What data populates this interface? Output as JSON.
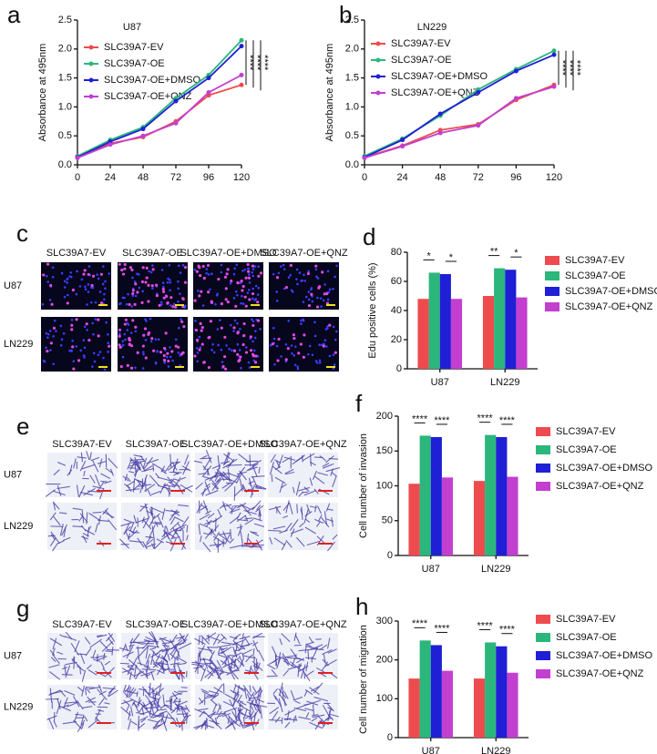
{
  "chart_data": [
    {
      "panel_label": "a",
      "type": "line",
      "title": "U87",
      "y_label": "Absorbance at 495nm",
      "x": [
        0,
        24,
        48,
        72,
        96,
        120
      ],
      "xlim": [
        0,
        120
      ],
      "xticks": [
        0,
        24,
        48,
        72,
        96,
        120
      ],
      "ylim": [
        0,
        2.5
      ],
      "yticks": [
        {
          "value": 0,
          "label": "0.0"
        },
        0.5,
        {
          "value": 1,
          "label": "1.0"
        },
        1.5,
        {
          "value": 2,
          "label": "2.0"
        },
        2.5
      ],
      "series": [
        {
          "name": "SLC39A7-EV",
          "color": "#ee4b4f",
          "values": [
            0.13,
            0.37,
            0.48,
            0.75,
            1.2,
            1.38
          ]
        },
        {
          "name": "SLC39A7-OE",
          "color": "#2bb67c",
          "values": [
            0.15,
            0.43,
            0.65,
            1.15,
            1.55,
            2.15
          ]
        },
        {
          "name": "SLC39A7-OE+DMSO",
          "color": "#1f1fd6",
          "values": [
            0.13,
            0.4,
            0.62,
            1.1,
            1.5,
            2.05
          ]
        },
        {
          "name": "SLC39A7-OE+QNZ",
          "color": "#c23fcf",
          "values": [
            0.12,
            0.35,
            0.5,
            0.72,
            1.25,
            1.55
          ]
        }
      ],
      "significance": [
        "****",
        "****",
        "****"
      ],
      "legend": "upper left"
    },
    {
      "panel_label": "b",
      "type": "line",
      "title": "LN229",
      "y_label": "Absorbance at 495nm",
      "x": [
        0,
        24,
        48,
        72,
        96,
        120
      ],
      "xlim": [
        0,
        120
      ],
      "xticks": [
        0,
        24,
        48,
        72,
        96,
        120
      ],
      "ylim": [
        0,
        2.5
      ],
      "yticks": [
        {
          "value": 0,
          "label": "0.0"
        },
        0.5,
        {
          "value": 1,
          "label": "1.0"
        },
        1.5,
        {
          "value": 2,
          "label": "2.0"
        },
        2.5
      ],
      "series": [
        {
          "name": "SLC39A7-EV",
          "color": "#ee4b4f",
          "values": [
            0.13,
            0.33,
            0.6,
            0.7,
            1.12,
            1.38
          ]
        },
        {
          "name": "SLC39A7-OE",
          "color": "#2bb67c",
          "values": [
            0.15,
            0.45,
            0.85,
            1.3,
            1.65,
            1.97
          ]
        },
        {
          "name": "SLC39A7-OE+DMSO",
          "color": "#1f1fd6",
          "values": [
            0.13,
            0.43,
            0.88,
            1.25,
            1.62,
            1.9
          ]
        },
        {
          "name": "SLC39A7-OE+QNZ",
          "color": "#c23fcf",
          "values": [
            0.12,
            0.32,
            0.55,
            0.68,
            1.15,
            1.35
          ]
        }
      ],
      "significance": [
        "****",
        "****",
        "****"
      ],
      "legend": "upper left"
    },
    {
      "panel_label": "d",
      "type": "bar",
      "y_label": "Edu positive cells (%)",
      "categories": [
        "U87",
        "LN229"
      ],
      "ylim": [
        0,
        80
      ],
      "yticks": [
        0,
        20,
        40,
        60,
        80
      ],
      "series": [
        {
          "name": "SLC39A7-EV",
          "color": "#ee4b4f",
          "values": [
            48,
            50
          ]
        },
        {
          "name": "SLC39A7-OE",
          "color": "#2bb67c",
          "values": [
            66,
            69
          ]
        },
        {
          "name": "SLC39A7-OE+DMSO",
          "color": "#1f1fd6",
          "values": [
            65,
            68
          ]
        },
        {
          "name": "SLC39A7-OE+QNZ",
          "color": "#c23fcf",
          "values": [
            48,
            49
          ]
        }
      ],
      "significance": [
        "*",
        "*",
        "**",
        "*"
      ],
      "legend": "right"
    },
    {
      "panel_label": "f",
      "type": "bar",
      "y_label": "Cell number of invasion",
      "categories": [
        "U87",
        "LN229"
      ],
      "ylim": [
        0,
        200
      ],
      "yticks": [
        0,
        50,
        100,
        150,
        200
      ],
      "series": [
        {
          "name": "SLC39A7-EV",
          "color": "#ee4b4f",
          "values": [
            103,
            107
          ]
        },
        {
          "name": "SLC39A7-OE",
          "color": "#2bb67c",
          "values": [
            172,
            173
          ]
        },
        {
          "name": "SLC39A7-OE+DMSO",
          "color": "#1f1fd6",
          "values": [
            170,
            170
          ]
        },
        {
          "name": "SLC39A7-OE+QNZ",
          "color": "#c23fcf",
          "values": [
            112,
            113
          ]
        }
      ],
      "significance": [
        "****",
        "****",
        "****",
        "****"
      ],
      "legend": "right"
    },
    {
      "panel_label": "h",
      "type": "bar",
      "y_label": "Cell number of migration",
      "categories": [
        "U87",
        "LN229"
      ],
      "ylim": [
        0,
        300
      ],
      "yticks": [
        0,
        100,
        200,
        300
      ],
      "series": [
        {
          "name": "SLC39A7-EV",
          "color": "#ee4b4f",
          "values": [
            152,
            152
          ]
        },
        {
          "name": "SLC39A7-OE",
          "color": "#2bb67c",
          "values": [
            250,
            245
          ]
        },
        {
          "name": "SLC39A7-OE+DMSO",
          "color": "#1f1fd6",
          "values": [
            238,
            235
          ]
        },
        {
          "name": "SLC39A7-OE+QNZ",
          "color": "#c23fcf",
          "values": [
            172,
            167
          ]
        }
      ],
      "significance": [
        "****",
        "****",
        "****",
        "****"
      ],
      "legend": "right"
    }
  ],
  "image_panels": [
    {
      "panel_label": "c",
      "columns": [
        "SLC39A7-EV",
        "SLC39A7-OE",
        "SLC39A7-OE+DMSO",
        "SLC39A7-OE+QNZ"
      ],
      "rows": [
        "U87",
        "LN229"
      ]
    },
    {
      "panel_label": "e",
      "columns": [
        "SLC39A7-EV",
        "SLC39A7-OE",
        "SLC39A7-OE+DMSO",
        "SLC39A7-OE+QNZ"
      ],
      "rows": [
        "U87",
        "LN229"
      ]
    },
    {
      "panel_label": "g",
      "columns": [
        "SLC39A7-EV",
        "SLC39A7-OE",
        "SLC39A7-OE+DMSO",
        "SLC39A7-OE+QNZ"
      ],
      "rows": [
        "U87",
        "LN229"
      ]
    }
  ]
}
